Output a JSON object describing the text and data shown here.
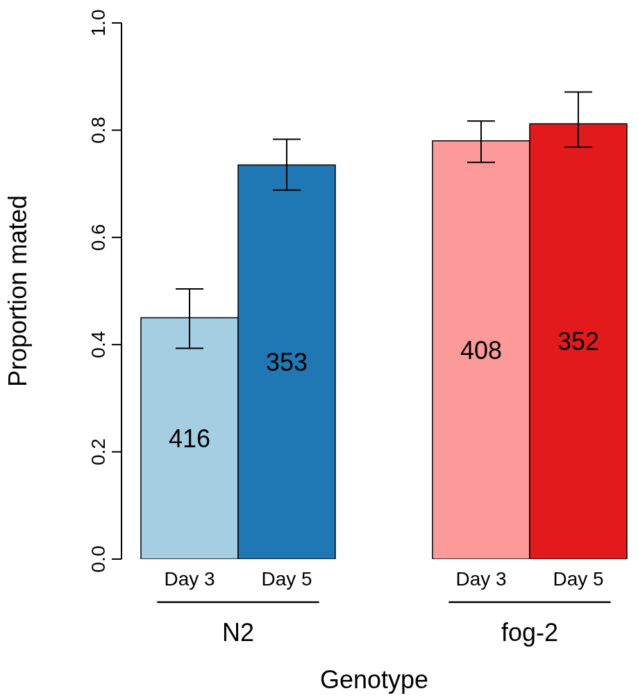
{
  "chart_data": {
    "type": "bar",
    "xlabel": "Genotype",
    "ylabel": "Proportion mated",
    "categories": [
      "Day 3",
      "Day 5",
      null,
      "Day 3",
      "Day 5"
    ],
    "values": [
      0.45,
      0.735,
      null,
      0.78,
      0.812
    ],
    "colors": [
      "#a6cee3",
      "#1f78b4",
      "#ffffff",
      "#fb9a99",
      "#e31a1c"
    ],
    "errors": [
      [
        0.393,
        0.504
      ],
      [
        0.688,
        0.783
      ],
      null,
      [
        0.74,
        0.817
      ],
      [
        0.768,
        0.871
      ]
    ],
    "annotations": [
      "N2",
      "fog-2",
      "416",
      "353",
      "408",
      "352"
    ],
    "ylim": [
      0,
      1
    ],
    "yticks": [
      {
        "value": 0,
        "label": "0.0"
      },
      {
        "value": 0.2,
        "label": "0.2"
      },
      {
        "value": 0.4,
        "label": "0.4"
      },
      {
        "value": 0.6,
        "label": "0.6"
      },
      {
        "value": 0.8,
        "label": "0.8"
      },
      {
        "value": 1,
        "label": "1.0"
      }
    ],
    "grid": false,
    "legend": false
  }
}
